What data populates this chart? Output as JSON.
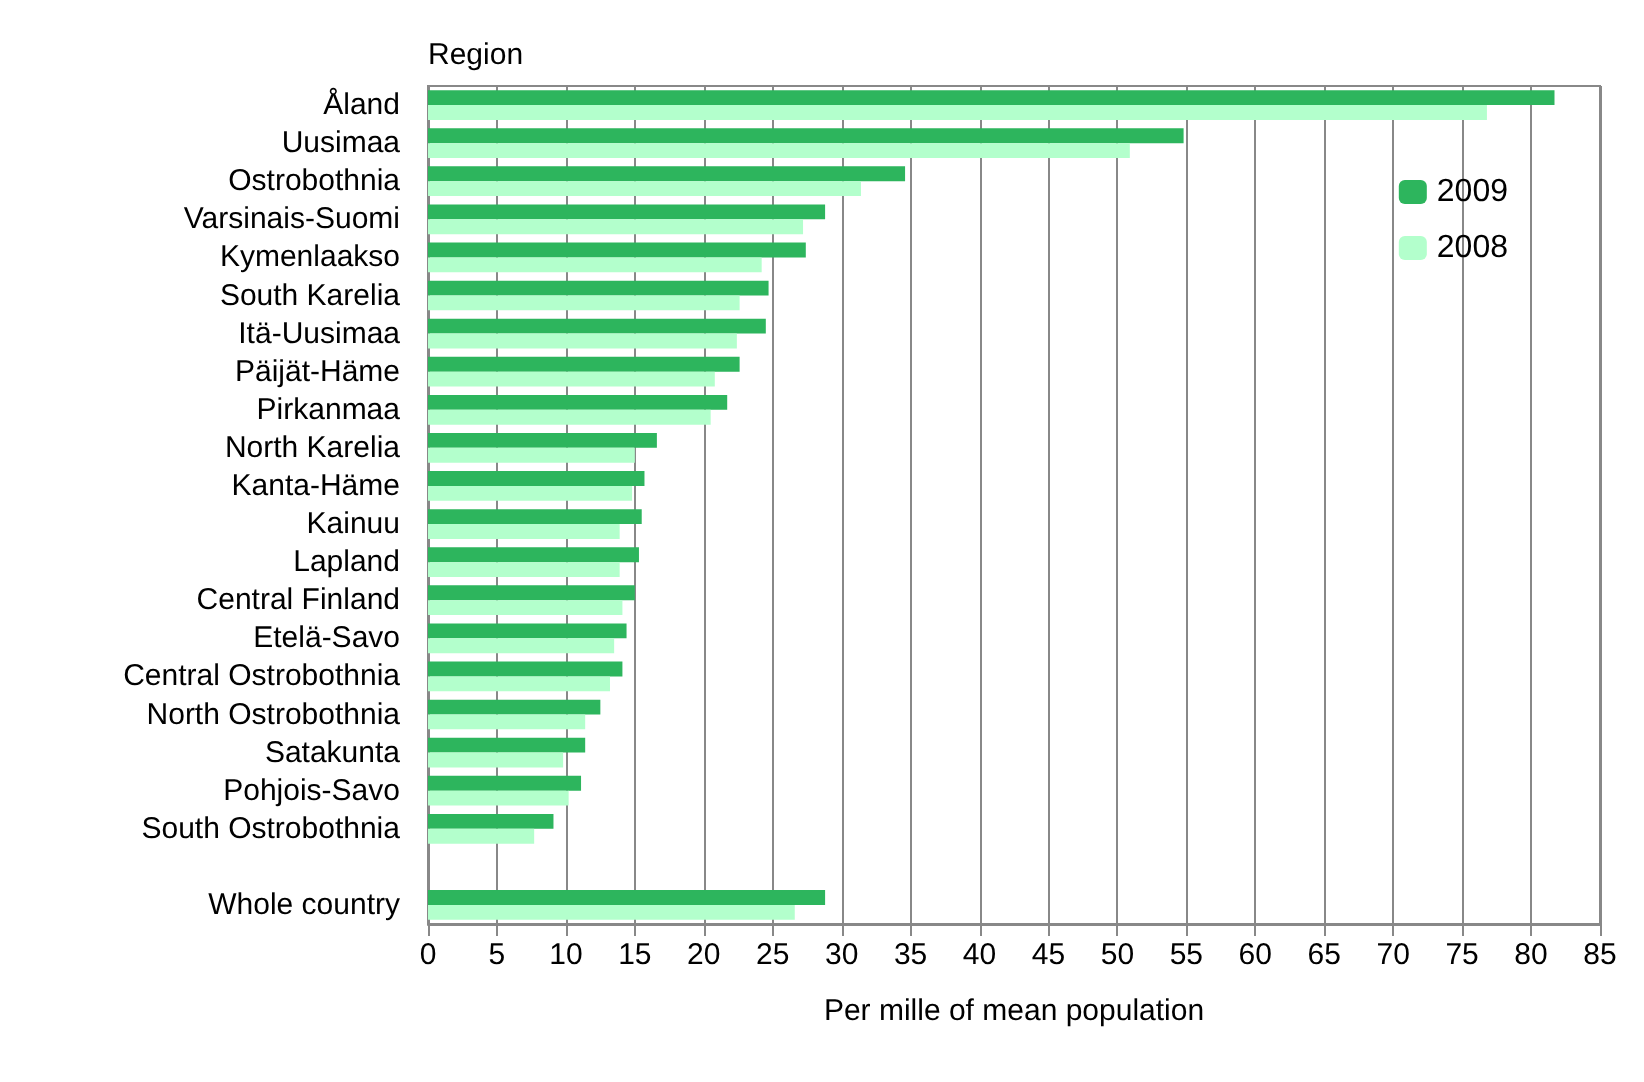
{
  "chart_data": {
    "type": "bar",
    "orientation": "horizontal",
    "ylabel": "Region",
    "xlabel": "Per mille of mean population",
    "categories": [
      "Åland",
      "Uusimaa",
      "Ostrobothnia",
      "Varsinais-Suomi",
      "Kymenlaakso",
      "South Karelia",
      "Itä-Uusimaa",
      "Päijät-Häme",
      "Pirkanmaa",
      "North Karelia",
      "Kanta-Häme",
      "Kainuu",
      "Lapland",
      "Central Finland",
      "Etelä-Savo",
      "Central Ostrobothnia",
      "North Ostrobothnia",
      "Satakunta",
      "Pohjois-Savo",
      "South Ostrobothnia",
      null,
      "Whole country"
    ],
    "series": [
      {
        "name": "2009",
        "color": "#2db55d",
        "values": [
          81.7,
          54.8,
          34.6,
          28.8,
          27.4,
          24.7,
          24.5,
          22.6,
          21.7,
          16.6,
          15.7,
          15.5,
          15.3,
          15.0,
          14.4,
          14.1,
          12.5,
          11.4,
          11.1,
          9.1,
          null,
          28.8
        ]
      },
      {
        "name": "2008",
        "color": "#b3ffcc",
        "values": [
          76.8,
          50.9,
          31.4,
          27.2,
          24.2,
          22.6,
          22.4,
          20.8,
          20.5,
          15.0,
          14.8,
          13.9,
          13.9,
          14.1,
          13.5,
          13.2,
          11.4,
          9.8,
          10.2,
          7.7,
          null,
          26.6
        ]
      }
    ],
    "xlim": [
      0,
      85
    ],
    "xticks": [
      0,
      5,
      10,
      15,
      20,
      25,
      30,
      35,
      40,
      45,
      50,
      55,
      60,
      65,
      70,
      75,
      80,
      85
    ],
    "grid": "x",
    "legend": "top right"
  }
}
